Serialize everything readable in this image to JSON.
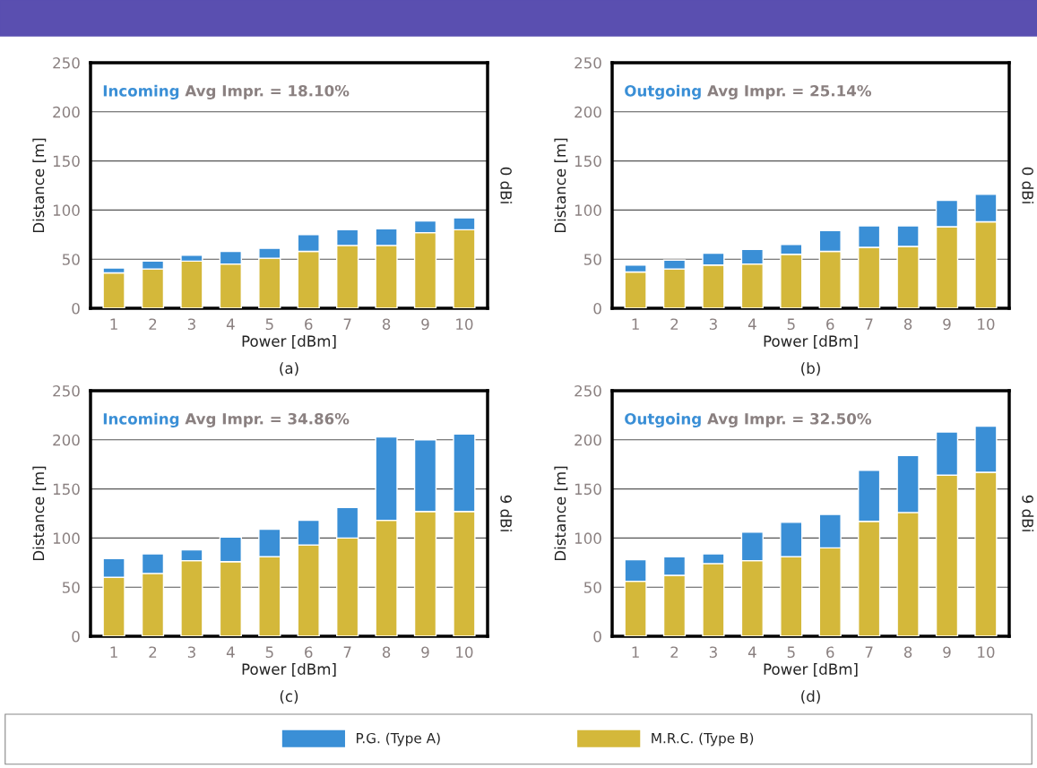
{
  "chart_data": [
    {
      "type": "bar",
      "stacked": true,
      "categories": [
        "1",
        "2",
        "3",
        "4",
        "5",
        "6",
        "7",
        "8",
        "9",
        "10"
      ],
      "xlabel": "Power [dBm]",
      "ylabel": "Distance [m]",
      "y2label": "0 dBi",
      "ylim": [
        0,
        250
      ],
      "yticks": [
        0,
        50,
        100,
        150,
        200,
        250
      ],
      "grid": "y",
      "legend": "bottom",
      "annotations": [
        "Incoming",
        "Avg Impr. = 18.10%",
        "(a)"
      ],
      "series": [
        {
          "name": "M.R.C. (Type B)",
          "color": "#d4b83a",
          "values": [
            36,
            40,
            48,
            45,
            51,
            58,
            64,
            64,
            77,
            80
          ]
        },
        {
          "name": "P.G. (Type A)",
          "color": "#3a8fd6",
          "values": [
            5,
            8,
            6,
            13,
            10,
            17,
            16,
            17,
            12,
            12
          ]
        }
      ]
    },
    {
      "type": "bar",
      "stacked": true,
      "categories": [
        "1",
        "2",
        "3",
        "4",
        "5",
        "6",
        "7",
        "8",
        "9",
        "10"
      ],
      "xlabel": "Power [dBm]",
      "ylabel": "Distance [m]",
      "y2label": "0 dBi",
      "ylim": [
        0,
        250
      ],
      "yticks": [
        0,
        50,
        100,
        150,
        200,
        250
      ],
      "grid": "y",
      "annotations": [
        "Outgoing",
        "Avg Impr. = 25.14%",
        "(b)"
      ],
      "series": [
        {
          "color": "#d4b83a",
          "values": [
            37,
            40,
            44,
            45,
            55,
            58,
            62,
            63,
            83,
            88
          ]
        },
        {
          "color": "#3a8fd6",
          "values": [
            7,
            9,
            12,
            15,
            10,
            21,
            22,
            21,
            27,
            28
          ]
        }
      ]
    },
    {
      "type": "bar",
      "stacked": true,
      "categories": [
        "1",
        "2",
        "3",
        "4",
        "5",
        "6",
        "7",
        "8",
        "9",
        "10"
      ],
      "xlabel": "Power [dBm]",
      "ylabel": "Distance [m]",
      "y2label": "9 dBi",
      "ylim": [
        0,
        250
      ],
      "yticks": [
        0,
        50,
        100,
        150,
        200,
        250
      ],
      "grid": "y",
      "annotations": [
        "Incoming",
        "Avg Impr. = 34.86%",
        "(c)"
      ],
      "series": [
        {
          "color": "#d4b83a",
          "values": [
            60,
            64,
            77,
            76,
            81,
            93,
            100,
            118,
            127,
            127
          ]
        },
        {
          "color": "#3a8fd6",
          "values": [
            19,
            20,
            11,
            25,
            28,
            25,
            31,
            85,
            73,
            79
          ]
        }
      ]
    },
    {
      "type": "bar",
      "stacked": true,
      "categories": [
        "1",
        "2",
        "3",
        "4",
        "5",
        "6",
        "7",
        "8",
        "9",
        "10"
      ],
      "xlabel": "Power [dBm]",
      "ylabel": "Distance [m]",
      "y2label": "9 dBi",
      "ylim": [
        0,
        250
      ],
      "yticks": [
        0,
        50,
        100,
        150,
        200,
        250
      ],
      "grid": "y",
      "annotations": [
        "Outgoing",
        "Avg Impr. = 32.50%",
        "(d)"
      ],
      "series": [
        {
          "color": "#d4b83a",
          "values": [
            56,
            62,
            74,
            77,
            81,
            90,
            117,
            126,
            164,
            167
          ]
        },
        {
          "color": "#3a8fd6",
          "values": [
            22,
            19,
            10,
            29,
            35,
            34,
            52,
            58,
            44,
            47
          ]
        }
      ]
    }
  ]
}
